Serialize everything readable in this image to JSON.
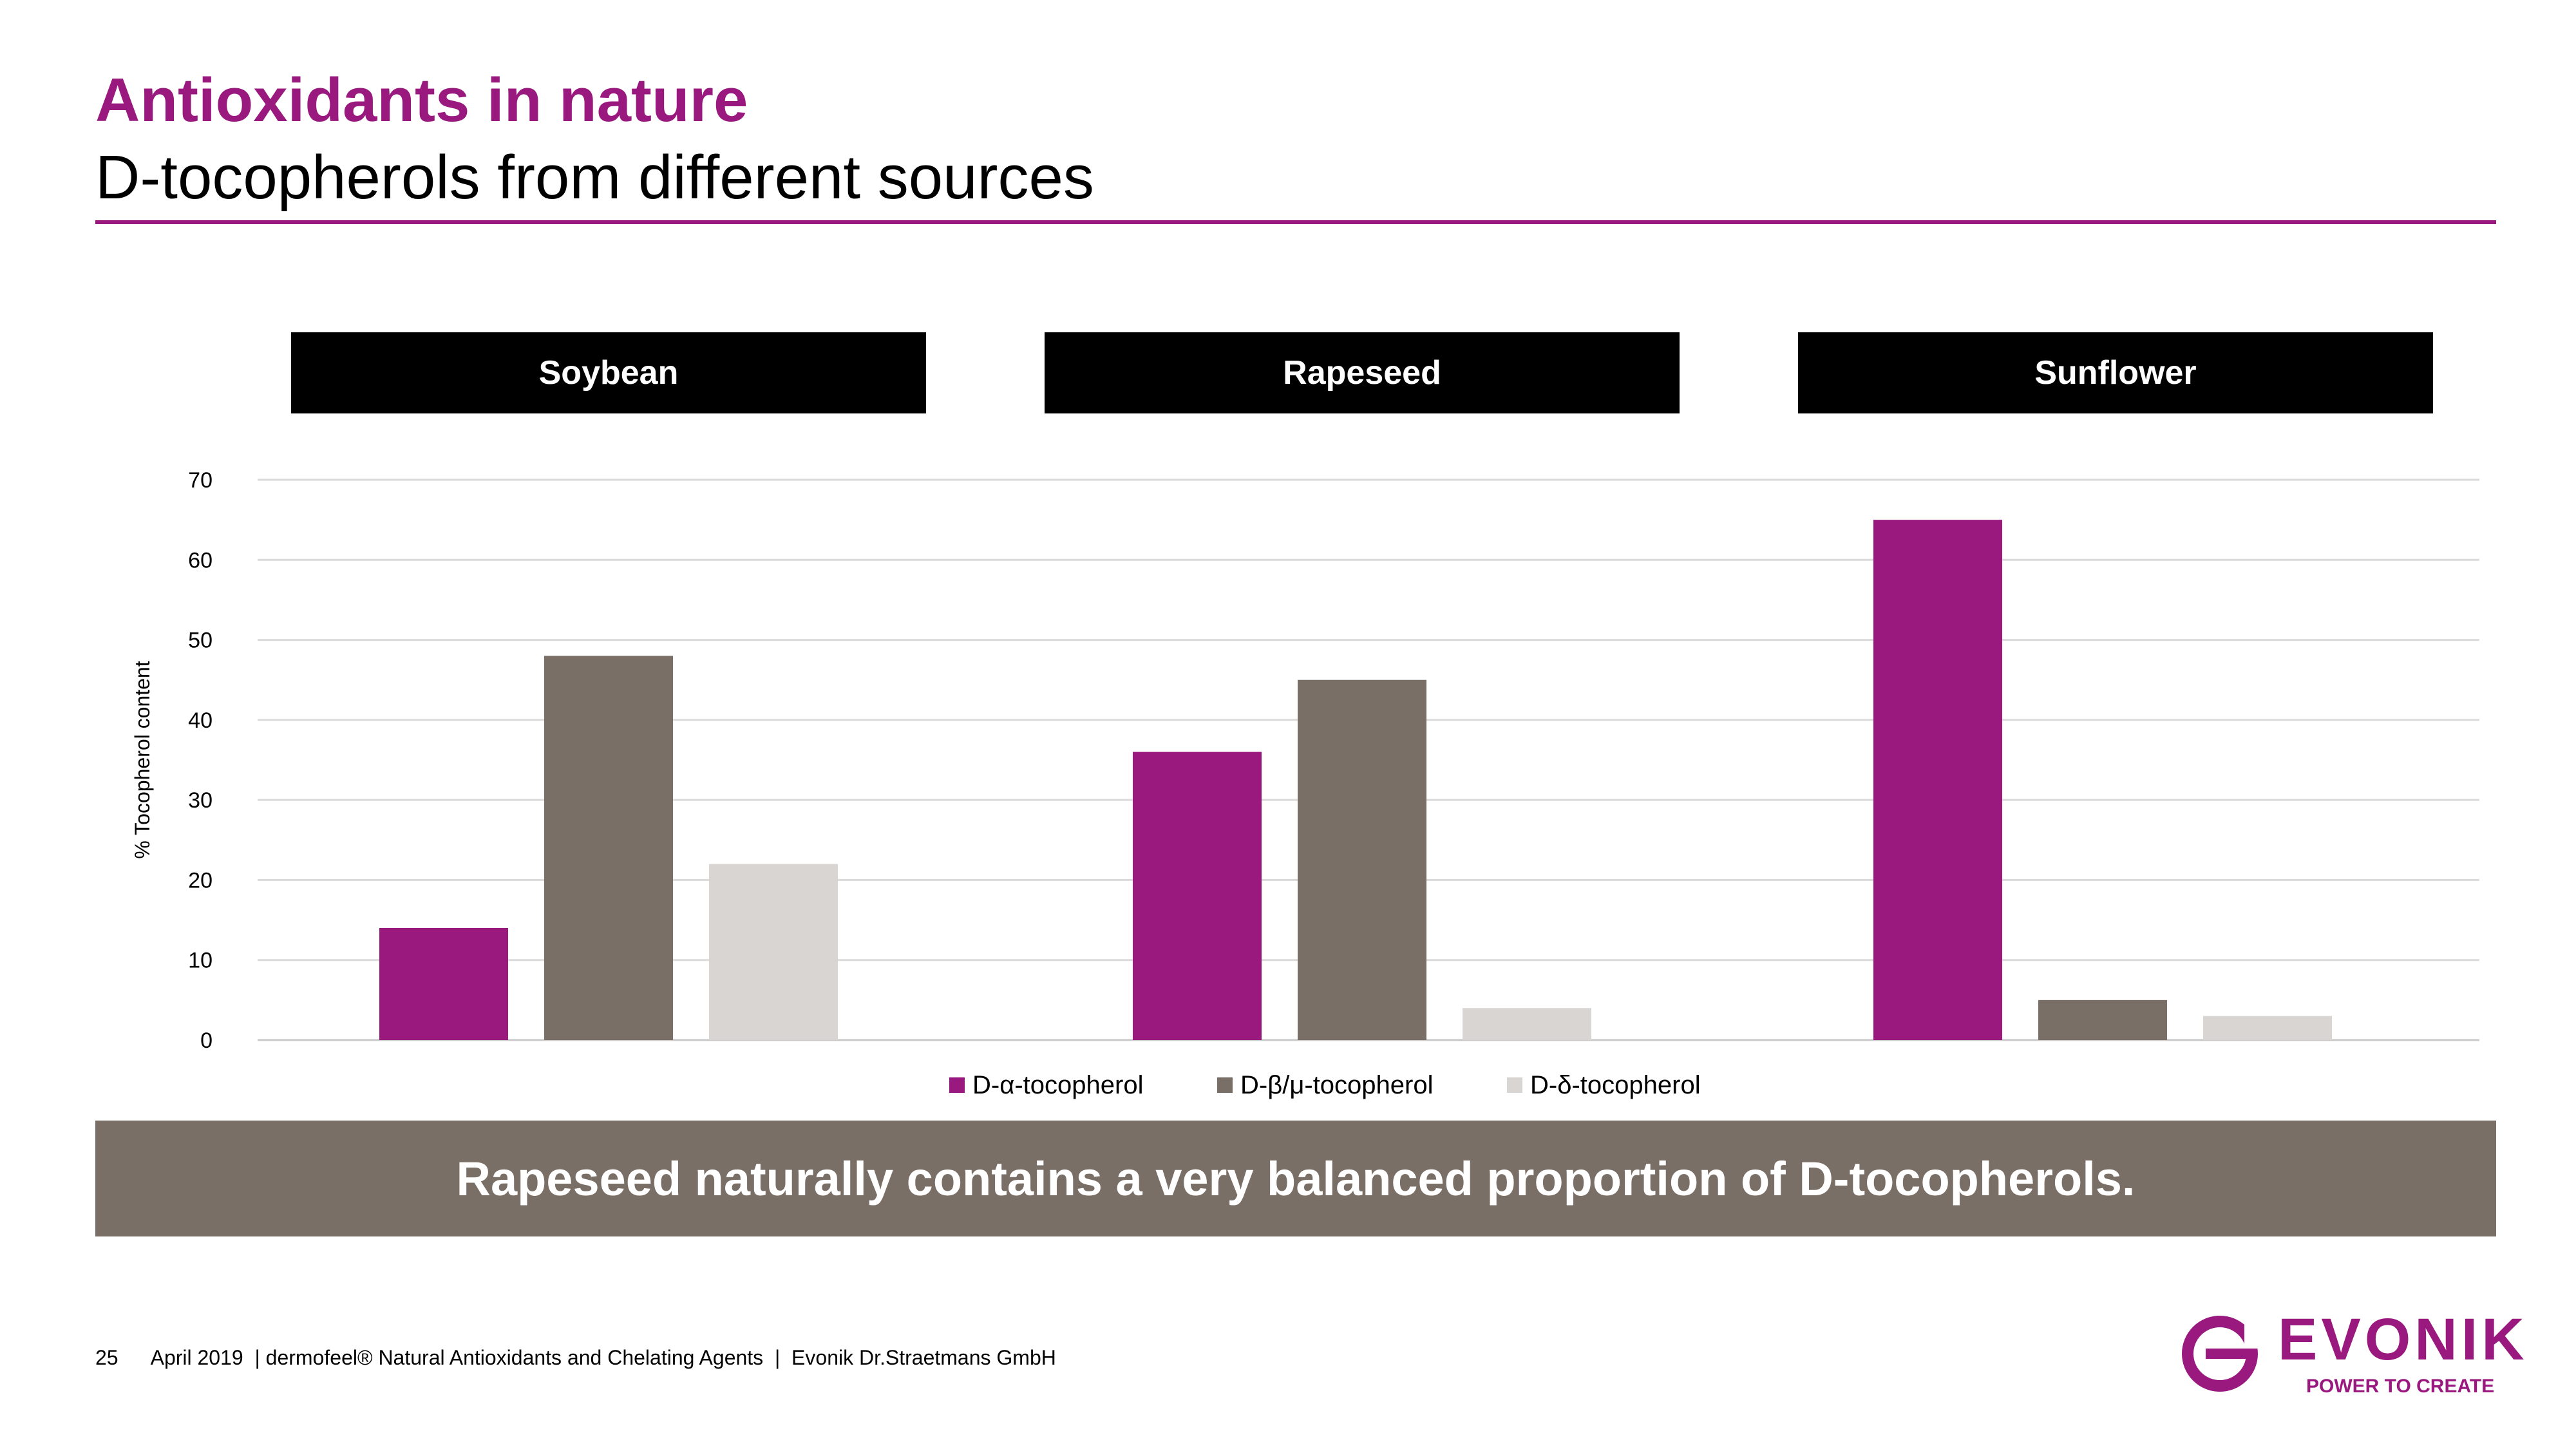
{
  "header": {
    "title": "Antioxidants in nature",
    "subtitle": "D-tocopherols from different sources"
  },
  "groups": [
    "Soybean",
    "Rapeseed",
    "Sunflower"
  ],
  "chart_data": {
    "type": "bar",
    "categories": [
      "Soybean",
      "Rapeseed",
      "Sunflower"
    ],
    "series": [
      {
        "name": "D-α-tocopherol",
        "color": "#99197f",
        "values": [
          14,
          36,
          65
        ]
      },
      {
        "name": "D-β/μ-tocopherol",
        "color": "#7a6f66",
        "values": [
          48,
          45,
          5
        ]
      },
      {
        "name": "D-δ-tocopherol",
        "color": "#d9d5d2",
        "values": [
          22,
          4,
          3
        ]
      }
    ],
    "ylabel": "% Tocopherol content",
    "ylim": [
      0,
      70
    ],
    "yticks": [
      0,
      10,
      20,
      30,
      40,
      50,
      60,
      70
    ],
    "grid": true,
    "legend": "bottom"
  },
  "banner": "Rapeseed naturally contains a very balanced proportion of D-tocopherols.",
  "footer": {
    "page": "25",
    "text": "April 2019  | dermofeel® Natural Antioxidants and Chelating Agents  |  Evonik Dr.Straetmans GmbH"
  },
  "logo": {
    "word": "EVONIK",
    "tagline": "POWER TO CREATE",
    "color": "#99197f"
  }
}
